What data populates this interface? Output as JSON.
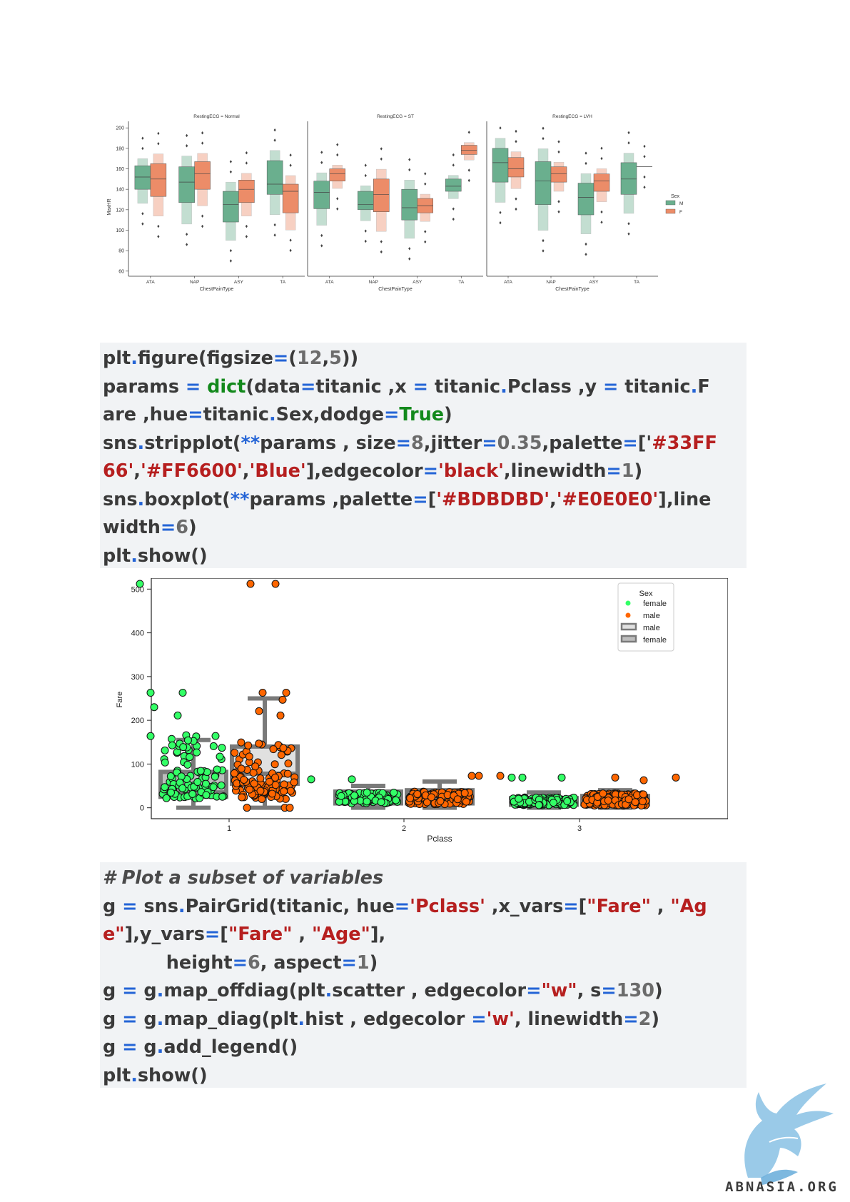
{
  "chart_data": [
    {
      "type": "boxenplot",
      "ylabel": "MaxHR",
      "xlabel": "ChestPainType",
      "categories": [
        "ATA",
        "NAP",
        "ASY",
        "TA"
      ],
      "yticks": [
        60,
        80,
        100,
        120,
        140,
        160,
        180,
        200
      ],
      "ylim": [
        55,
        205
      ],
      "legend": {
        "title": "Sex",
        "entries": [
          "M",
          "F"
        ],
        "colors": [
          "#6aaf8e",
          "#ec8c68"
        ]
      },
      "panels": [
        {
          "title": "RestingECG = Normal",
          "series": [
            {
              "name": "M",
              "q1": [
                140,
                127,
                108,
                135
              ],
              "median": [
                152,
                147,
                125,
                145
              ],
              "q3": [
                163,
                162,
                138,
                168
              ]
            },
            {
              "name": "F",
              "q1": [
                133,
                140,
                127,
                117
              ],
              "median": [
                150,
                155,
                140,
                138
              ],
              "q3": [
                165,
                167,
                149,
                145
              ]
            }
          ]
        },
        {
          "title": "RestingECG = ST",
          "series": [
            {
              "name": "M",
              "q1": [
                121,
                120,
                110,
                138
              ],
              "median": [
                137,
                125,
                122,
                143
              ],
              "q3": [
                148,
                138,
                140,
                150
              ]
            },
            {
              "name": "F",
              "q1": [
                148,
                118,
                117,
                174
              ],
              "median": [
                155,
                135,
                124,
                178
              ],
              "q3": [
                160,
                150,
                131,
                183
              ]
            }
          ]
        },
        {
          "title": "RestingECG = LVH",
          "series": [
            {
              "name": "M",
              "q1": [
                147,
                125,
                115,
                135
              ],
              "median": [
                166,
                148,
                132,
                150
              ],
              "q3": [
                180,
                167,
                146,
                166
              ]
            },
            {
              "name": "F",
              "q1": [
                152,
                147,
                138,
                162
              ],
              "median": [
                160,
                155,
                148,
                162
              ],
              "q3": [
                171,
                162,
                155,
                162
              ]
            }
          ]
        }
      ]
    },
    {
      "type": "strip+box",
      "xlabel": "Pclass",
      "ylabel": "Fare",
      "categories": [
        "1",
        "2",
        "3"
      ],
      "yticks": [
        0,
        100,
        200,
        300,
        400,
        500
      ],
      "ylim": [
        -25,
        525
      ],
      "legend": {
        "title": "Sex",
        "entries": [
          "female",
          "male",
          "male",
          "female"
        ]
      },
      "box_stats": [
        {
          "class": "1",
          "group": "female",
          "q1": 25,
          "median": 35,
          "q3": 82,
          "whisk_lo": 0,
          "whisk_hi": 155
        },
        {
          "class": "1",
          "group": "male",
          "q1": 55,
          "median": 78,
          "q3": 140,
          "whisk_lo": 0,
          "whisk_hi": 250
        },
        {
          "class": "2",
          "group": "female",
          "q1": 10,
          "median": 17,
          "q3": 37,
          "whisk_lo": 0,
          "whisk_hi": 50
        },
        {
          "class": "2",
          "group": "male",
          "q1": 10,
          "median": 20,
          "q3": 40,
          "whisk_lo": 0,
          "whisk_hi": 60
        },
        {
          "class": "3",
          "group": "female",
          "q1": 7,
          "median": 9,
          "q3": 22,
          "whisk_lo": 0,
          "whisk_hi": 35
        },
        {
          "class": "3",
          "group": "male",
          "q1": 8,
          "median": 12,
          "q3": 27,
          "whisk_lo": 0,
          "whisk_hi": 40
        }
      ],
      "outliers": [
        512,
        512,
        512,
        263,
        263,
        247
      ],
      "colors": {
        "female": "#33FF66",
        "male": "#FF6600",
        "box1": "#BDBDBD",
        "box2": "#E0E0E0"
      }
    }
  ],
  "code1": [
    [
      [
        "plt",
        "t"
      ],
      [
        ".",
        "op"
      ],
      [
        "figure(figsize",
        "t"
      ],
      [
        "=",
        "op"
      ],
      [
        "(",
        "t"
      ],
      [
        "12",
        "num"
      ],
      [
        ",",
        "t"
      ],
      [
        "5",
        "num"
      ],
      [
        "))",
        "t"
      ]
    ],
    [
      [
        "params ",
        "t"
      ],
      [
        "=",
        "op"
      ],
      [
        " ",
        "t"
      ],
      [
        "dict",
        "kw"
      ],
      [
        "(data",
        "t"
      ],
      [
        "=",
        "op"
      ],
      [
        "titanic ,x ",
        "t"
      ],
      [
        "=",
        "op"
      ],
      [
        " titanic",
        "t"
      ],
      [
        ".",
        "op"
      ],
      [
        "Pclass ,y ",
        "t"
      ],
      [
        "=",
        "op"
      ],
      [
        " titanic",
        "t"
      ],
      [
        ".",
        "op"
      ],
      [
        "F",
        "t"
      ]
    ],
    [
      [
        "are ,hue",
        "t"
      ],
      [
        "=",
        "op"
      ],
      [
        "titanic",
        "t"
      ],
      [
        ".",
        "op"
      ],
      [
        "Sex,dodge",
        "t"
      ],
      [
        "=",
        "op"
      ],
      [
        "True",
        "kw"
      ],
      [
        ")",
        "t"
      ]
    ],
    [
      [
        "sns",
        "t"
      ],
      [
        ".",
        "op"
      ],
      [
        "stripplot(",
        "t"
      ],
      [
        "**",
        "op"
      ],
      [
        "params , size",
        "t"
      ],
      [
        "=",
        "op"
      ],
      [
        "8",
        "num"
      ],
      [
        ",jitter",
        "t"
      ],
      [
        "=",
        "op"
      ],
      [
        "0.35",
        "num"
      ],
      [
        ",palette",
        "t"
      ],
      [
        "=",
        "op"
      ],
      [
        "['",
        "t"
      ],
      [
        "#33FF",
        "str"
      ]
    ],
    [
      [
        "66'",
        "str"
      ],
      [
        ",",
        "t"
      ],
      [
        "'#FF6600'",
        "str"
      ],
      [
        ",",
        "t"
      ],
      [
        "'Blue'",
        "str"
      ],
      [
        "],edgecolor",
        "t"
      ],
      [
        "=",
        "op"
      ],
      [
        "'black'",
        "str"
      ],
      [
        ",linewidth",
        "t"
      ],
      [
        "=",
        "op"
      ],
      [
        "1",
        "num"
      ],
      [
        ")",
        "t"
      ]
    ],
    [
      [
        "sns",
        "t"
      ],
      [
        ".",
        "op"
      ],
      [
        "boxplot(",
        "t"
      ],
      [
        "**",
        "op"
      ],
      [
        "params ,palette",
        "t"
      ],
      [
        "=",
        "op"
      ],
      [
        "[",
        "t"
      ],
      [
        "'#BDBDBD'",
        "str"
      ],
      [
        ",",
        "t"
      ],
      [
        "'#E0E0E0'",
        "str"
      ],
      [
        "],line",
        "t"
      ]
    ],
    [
      [
        "width",
        "t"
      ],
      [
        "=",
        "op"
      ],
      [
        "6",
        "num"
      ],
      [
        ")",
        "t"
      ]
    ],
    [
      [
        "plt",
        "t"
      ],
      [
        ".",
        "op"
      ],
      [
        "show()",
        "t"
      ]
    ]
  ],
  "code2": [
    [
      [
        "# Plot a subset of variables",
        "cm"
      ]
    ],
    [
      [
        "g ",
        "t"
      ],
      [
        "=",
        "op"
      ],
      [
        " sns",
        "t"
      ],
      [
        ".",
        "op"
      ],
      [
        "PairGrid(titanic, hue",
        "t"
      ],
      [
        "=",
        "op"
      ],
      [
        "'Pclass'",
        "str"
      ],
      [
        " ,x_vars",
        "t"
      ],
      [
        "=",
        "op"
      ],
      [
        "[",
        "t"
      ],
      [
        "\"Fare\"",
        "str"
      ],
      [
        " , ",
        "t"
      ],
      [
        "\"Ag",
        "str"
      ]
    ],
    [
      [
        "e\"",
        "str"
      ],
      [
        "],y_vars",
        "t"
      ],
      [
        "=",
        "op"
      ],
      [
        "[",
        "t"
      ],
      [
        "\"Fare\"",
        "str"
      ],
      [
        " , ",
        "t"
      ],
      [
        "\"Age\"",
        "str"
      ],
      [
        "],",
        "t"
      ]
    ],
    [
      [
        "          height",
        "t"
      ],
      [
        "=",
        "op"
      ],
      [
        "6",
        "num"
      ],
      [
        ", aspect",
        "t"
      ],
      [
        "=",
        "op"
      ],
      [
        "1",
        "num"
      ],
      [
        ")",
        "t"
      ]
    ],
    [
      [
        "g ",
        "t"
      ],
      [
        "=",
        "op"
      ],
      [
        " g",
        "t"
      ],
      [
        ".",
        "op"
      ],
      [
        "map_offdiag(plt",
        "t"
      ],
      [
        ".",
        "op"
      ],
      [
        "scatter , edgecolor",
        "t"
      ],
      [
        "=",
        "op"
      ],
      [
        "\"w\"",
        "str"
      ],
      [
        ", s",
        "t"
      ],
      [
        "=",
        "op"
      ],
      [
        "130",
        "num"
      ],
      [
        ")",
        "t"
      ]
    ],
    [
      [
        "g ",
        "t"
      ],
      [
        "=",
        "op"
      ],
      [
        " g",
        "t"
      ],
      [
        ".",
        "op"
      ],
      [
        "map_diag(plt",
        "t"
      ],
      [
        ".",
        "op"
      ],
      [
        "hist , edgecolor ",
        "t"
      ],
      [
        "=",
        "op"
      ],
      [
        "'w'",
        "str"
      ],
      [
        ", linewidth",
        "t"
      ],
      [
        "=",
        "op"
      ],
      [
        "2",
        "num"
      ],
      [
        ")",
        "t"
      ]
    ],
    [
      [
        "g ",
        "t"
      ],
      [
        "=",
        "op"
      ],
      [
        " g",
        "t"
      ],
      [
        ".",
        "op"
      ],
      [
        "add_legend()",
        "t"
      ]
    ],
    [
      [
        "plt",
        "t"
      ],
      [
        ".",
        "op"
      ],
      [
        "show()",
        "t"
      ]
    ]
  ],
  "logo": {
    "text": "ABNASIA.ORG",
    "icon": "phoenix-bird-icon",
    "color": "#8fc4e6"
  }
}
